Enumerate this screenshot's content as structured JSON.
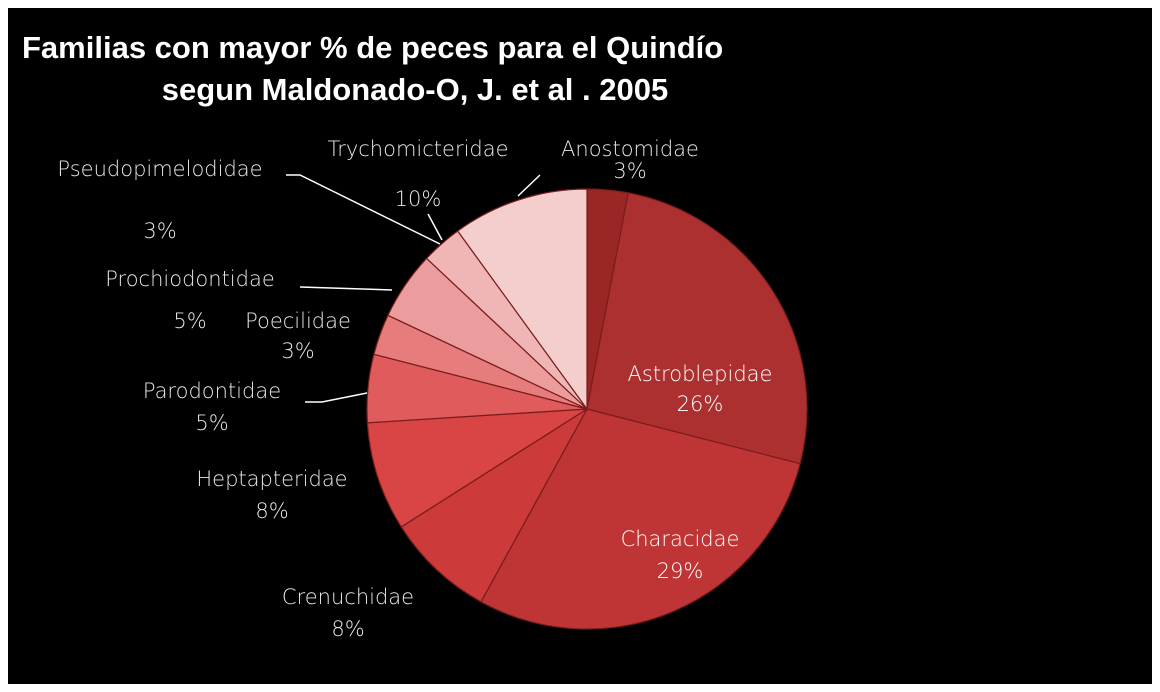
{
  "chart_data": {
    "type": "pie",
    "title": [
      "Familias con mayor % de peces para el Quindío",
      "segun Maldonado-O, J. et al . 2005"
    ],
    "categories": [
      "Anostomidae",
      "Astroblepidae",
      "Characidae",
      "Crenuchidae",
      "Heptapteridae",
      "Parodontidae",
      "Poecilidae",
      "Prochiodontidae",
      "Pseudopimelodidae",
      "Trychomicteridae"
    ],
    "values": [
      3,
      26,
      29,
      8,
      8,
      5,
      3,
      5,
      3,
      10
    ],
    "value_labels": [
      "3%",
      "26%",
      "29%",
      "8%",
      "8%",
      "5%",
      "3%",
      "5%",
      "3%",
      "10%"
    ],
    "colors": [
      "#9a2626",
      "#ad3030",
      "#bf3434",
      "#cc3a3a",
      "#d94444",
      "#e05c5c",
      "#e67c7c",
      "#eb9c9c",
      "#f0b6b6",
      "#f4cdcd"
    ]
  }
}
